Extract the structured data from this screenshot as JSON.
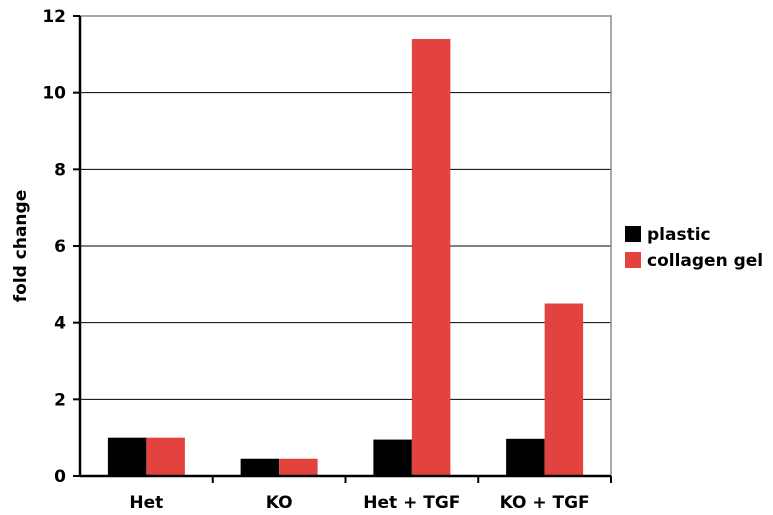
{
  "chart_data": {
    "type": "bar",
    "categories": [
      "Het",
      "KO",
      "Het + TGF",
      "KO + TGF"
    ],
    "series": [
      {
        "name": "plastic",
        "color": "#000000",
        "values": [
          1.0,
          0.45,
          0.95,
          0.97
        ]
      },
      {
        "name": "collagen gel",
        "color": "#e2433e",
        "values": [
          1.0,
          0.45,
          11.4,
          4.5
        ]
      }
    ],
    "title": "",
    "xlabel": "",
    "ylabel": "fold change",
    "ylim": [
      0,
      12
    ],
    "yticks": [
      0,
      2,
      4,
      6,
      8,
      10,
      12
    ],
    "grid": true,
    "legend_position": "right"
  }
}
